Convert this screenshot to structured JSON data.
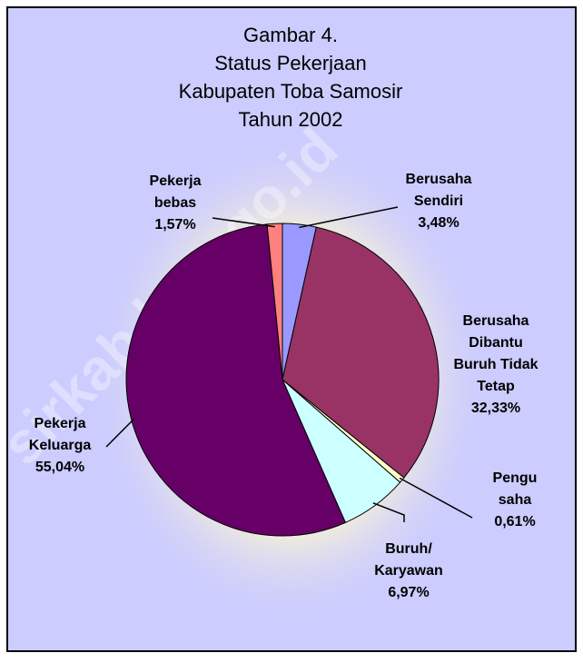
{
  "chart_data": {
    "type": "pie",
    "title": "Gambar 4.\nStatus Pekerjaan\nKabupaten Toba Samosir\nTahun 2002",
    "watermark": "sirkab.bps.go.id",
    "categories": [
      "Berusaha\nSendiri",
      "Berusaha\nDibantu\nBuruh Tidak\nTetap",
      "Pengu\nsaha",
      "Buruh/\nKaryawan",
      "Pekerja\nKeluarga",
      "Pekerja\nbebas"
    ],
    "values": [
      3.48,
      32.33,
      0.61,
      6.97,
      55.04,
      1.57
    ],
    "value_labels": [
      "3,48%",
      "32,33%",
      "0,61%",
      "6,97%",
      "55,04%",
      "1,57%"
    ],
    "colors": [
      "#9999ff",
      "#993366",
      "#ffffcc",
      "#ccffff",
      "#660066",
      "#ff8080"
    ]
  }
}
